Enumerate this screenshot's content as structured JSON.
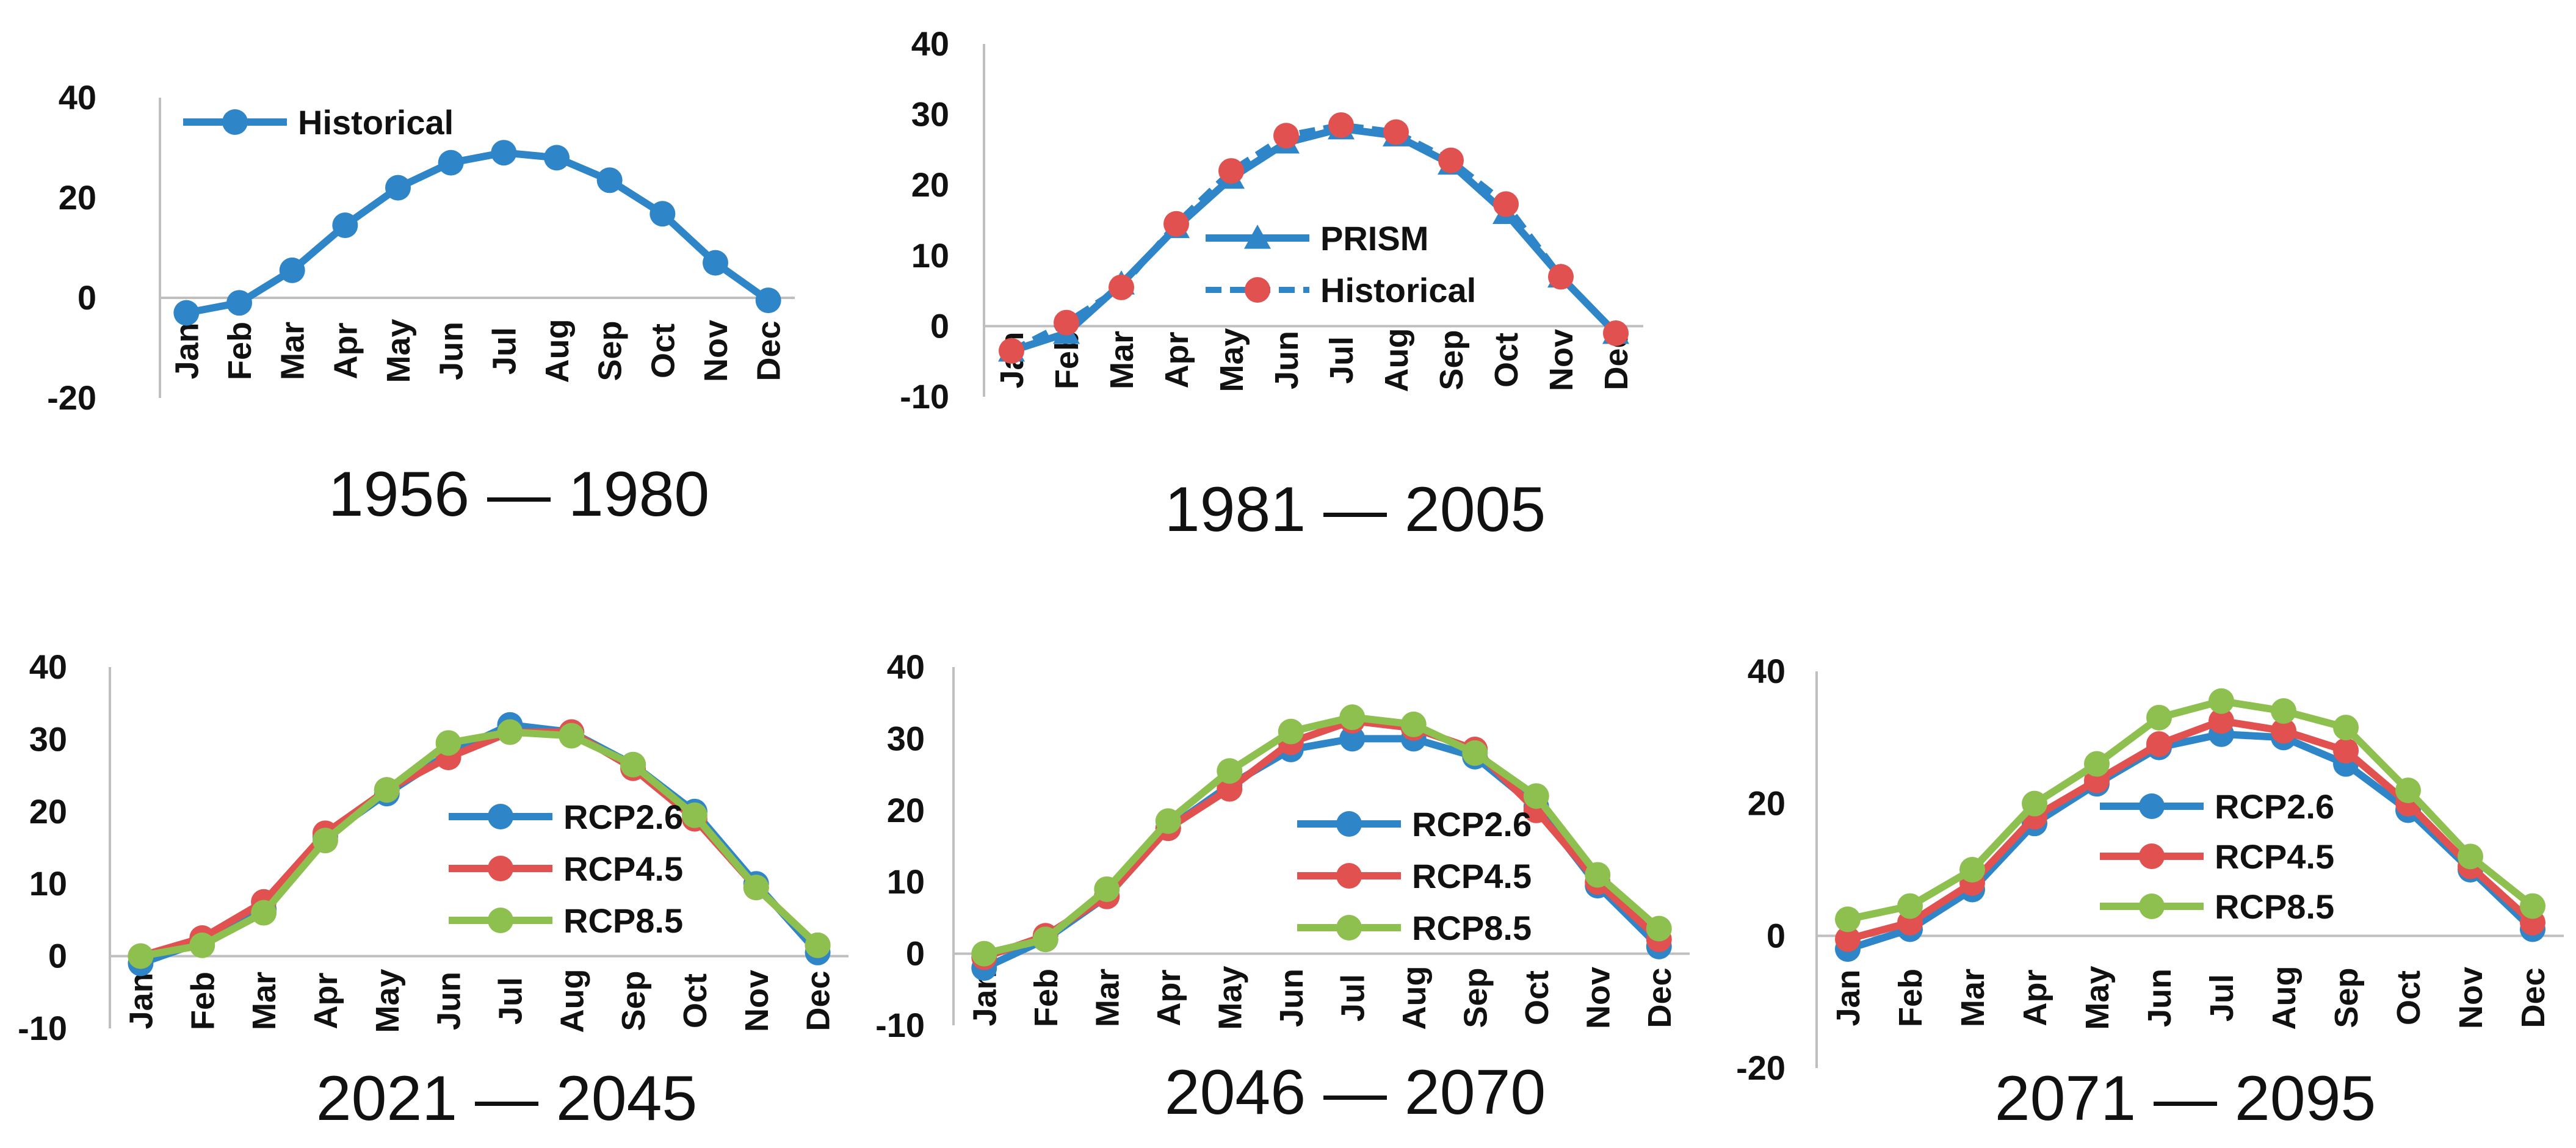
{
  "colors": {
    "blue": "#2E86C8",
    "red": "#E0514F",
    "green": "#8DC04E",
    "axis": "#BFBFBF"
  },
  "chart_data": [
    {
      "type": "line",
      "title": "1956 — 1980",
      "categories": [
        "Jan",
        "Feb",
        "Mar",
        "Apr",
        "May",
        "Jun",
        "Jul",
        "Aug",
        "Sep",
        "Oct",
        "Nov",
        "Dec"
      ],
      "ylim": [
        -20,
        40
      ],
      "yticks": [
        -20,
        0,
        20,
        40
      ],
      "legend_position": "top-left",
      "series": [
        {
          "name": "Historical",
          "color": "#2E86C8",
          "marker": "circle",
          "dash": "solid",
          "values": [
            -3,
            -1,
            5.5,
            14.5,
            22,
            27,
            29,
            28,
            23.5,
            16.8,
            7,
            -0.5
          ]
        }
      ]
    },
    {
      "type": "line",
      "title": "1981 — 2005",
      "categories": [
        "Jan",
        "Feb",
        "Mar",
        "Apr",
        "May",
        "Jun",
        "Jul",
        "Aug",
        "Sep",
        "Oct",
        "Nov",
        "Dec"
      ],
      "ylim": [
        -10,
        40
      ],
      "yticks": [
        -10,
        0,
        10,
        20,
        30,
        40
      ],
      "legend_position": "center",
      "series": [
        {
          "name": "PRISM",
          "color": "#2E86C8",
          "marker": "triangle",
          "dash": "solid",
          "values": [
            -3.5,
            -1,
            6,
            14,
            21,
            26,
            28,
            27,
            23,
            16,
            7,
            -1
          ]
        },
        {
          "name": "Historical",
          "color": "#2E86C8",
          "marker": "circle-red",
          "dash": "dashed",
          "values": [
            -3.5,
            0.5,
            5.5,
            14.5,
            22,
            27,
            28.5,
            27.5,
            23.5,
            17.3,
            7,
            -1
          ]
        }
      ]
    },
    {
      "type": "line",
      "title": "2021 — 2045",
      "categories": [
        "Jan",
        "Feb",
        "Mar",
        "Apr",
        "May",
        "Jun",
        "Jul",
        "Aug",
        "Sep",
        "Oct",
        "Nov",
        "Dec"
      ],
      "ylim": [
        -10,
        40
      ],
      "yticks": [
        -10,
        0,
        10,
        20,
        30,
        40
      ],
      "legend_position": "center",
      "series": [
        {
          "name": "RCP2.6",
          "color": "#2E86C8",
          "marker": "circle",
          "dash": "solid",
          "values": [
            -1,
            2,
            6.5,
            16.5,
            22.5,
            28,
            32,
            31,
            26.5,
            20,
            10,
            0.5
          ]
        },
        {
          "name": "RCP4.5",
          "color": "#E0514F",
          "marker": "circle",
          "dash": "solid",
          "values": [
            0,
            2.5,
            7.5,
            17,
            23,
            27.5,
            31,
            31,
            26,
            19,
            9.5,
            1.5
          ]
        },
        {
          "name": "RCP8.5",
          "color": "#8DC04E",
          "marker": "circle",
          "dash": "solid",
          "values": [
            0,
            1.5,
            6,
            16,
            23,
            29.5,
            31,
            30.5,
            26.5,
            19.5,
            9.5,
            1.5
          ]
        }
      ]
    },
    {
      "type": "line",
      "title": "2046 — 2070",
      "categories": [
        "Jan",
        "Feb",
        "Mar",
        "Apr",
        "May",
        "Jun",
        "Jul",
        "Aug",
        "Sep",
        "Oct",
        "Nov",
        "Dec"
      ],
      "ylim": [
        -10,
        40
      ],
      "yticks": [
        -10,
        0,
        10,
        20,
        30,
        40
      ],
      "legend_position": "center",
      "series": [
        {
          "name": "RCP2.6",
          "color": "#2E86C8",
          "marker": "circle",
          "dash": "solid",
          "values": [
            -2,
            2,
            8,
            17.5,
            23.5,
            28.5,
            30,
            30,
            27.5,
            20.5,
            9.5,
            1
          ]
        },
        {
          "name": "RCP4.5",
          "color": "#E0514F",
          "marker": "circle",
          "dash": "solid",
          "values": [
            -0.5,
            2.5,
            8,
            17.5,
            23,
            29.5,
            32.5,
            31.5,
            28.5,
            20,
            10,
            2
          ]
        },
        {
          "name": "RCP8.5",
          "color": "#8DC04E",
          "marker": "circle",
          "dash": "solid",
          "values": [
            0,
            2,
            9,
            18.5,
            25.5,
            31,
            33,
            32,
            28,
            22,
            11,
            3.5
          ]
        }
      ]
    },
    {
      "type": "line",
      "title": "2071 — 2095",
      "categories": [
        "Jan",
        "Feb",
        "Mar",
        "Apr",
        "May",
        "Jun",
        "Jul",
        "Aug",
        "Sep",
        "Oct",
        "Nov",
        "Dec"
      ],
      "ylim": [
        -20,
        40
      ],
      "yticks": [
        -20,
        0,
        20,
        40
      ],
      "legend_position": "center",
      "series": [
        {
          "name": "RCP2.6",
          "color": "#2E86C8",
          "marker": "circle",
          "dash": "solid",
          "values": [
            -2,
            1,
            7,
            17,
            23,
            28.5,
            30.5,
            30,
            26,
            19,
            10,
            1
          ]
        },
        {
          "name": "RCP4.5",
          "color": "#E0514F",
          "marker": "circle",
          "dash": "solid",
          "values": [
            -0.5,
            2,
            8,
            18,
            23.5,
            29,
            32.5,
            31,
            28,
            20,
            10.5,
            2
          ]
        },
        {
          "name": "RCP8.5",
          "color": "#8DC04E",
          "marker": "circle",
          "dash": "solid",
          "values": [
            2.5,
            4.5,
            10,
            20,
            26,
            33,
            35.5,
            34,
            31.5,
            22,
            12,
            4.5
          ]
        }
      ]
    }
  ]
}
